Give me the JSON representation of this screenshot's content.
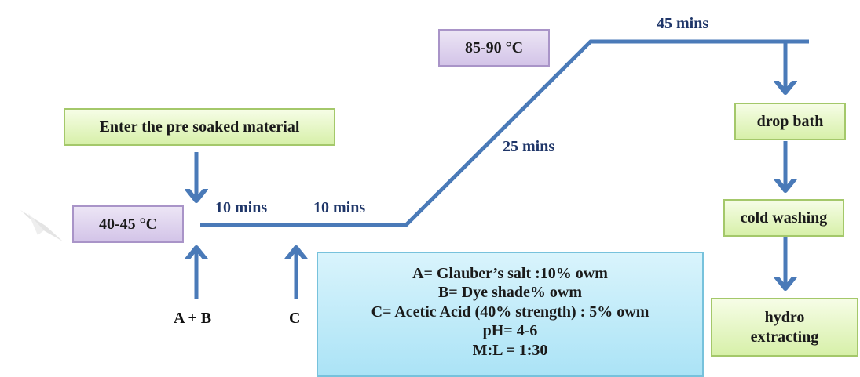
{
  "temps": {
    "low": "40-45 °C",
    "high": "85-90 °C"
  },
  "steps": {
    "enter": "Enter the pre soaked material",
    "drop_bath": "drop bath",
    "cold_washing": "cold washing",
    "hydro": "hydro extracting"
  },
  "times": {
    "t1": "10 mins",
    "t2": "10 mins",
    "t3": "25 mins",
    "t4": "45 mins"
  },
  "additions": {
    "ab": "A + B",
    "c": "C"
  },
  "legend": {
    "line1": "A= Glauber’s salt :10% owm",
    "line2": "B= Dye shade% owm",
    "line3": "C= Acetic Acid (40% strength) : 5% owm",
    "line4": "pH= 4-6",
    "line5": "M:L = 1:30"
  },
  "colors": {
    "line": "#4a7ab8",
    "label": "#1f3669",
    "green_fill": "#e4f5c4",
    "purple_fill": "#ddd3ee",
    "blue_fill": "#c2ecfa"
  }
}
